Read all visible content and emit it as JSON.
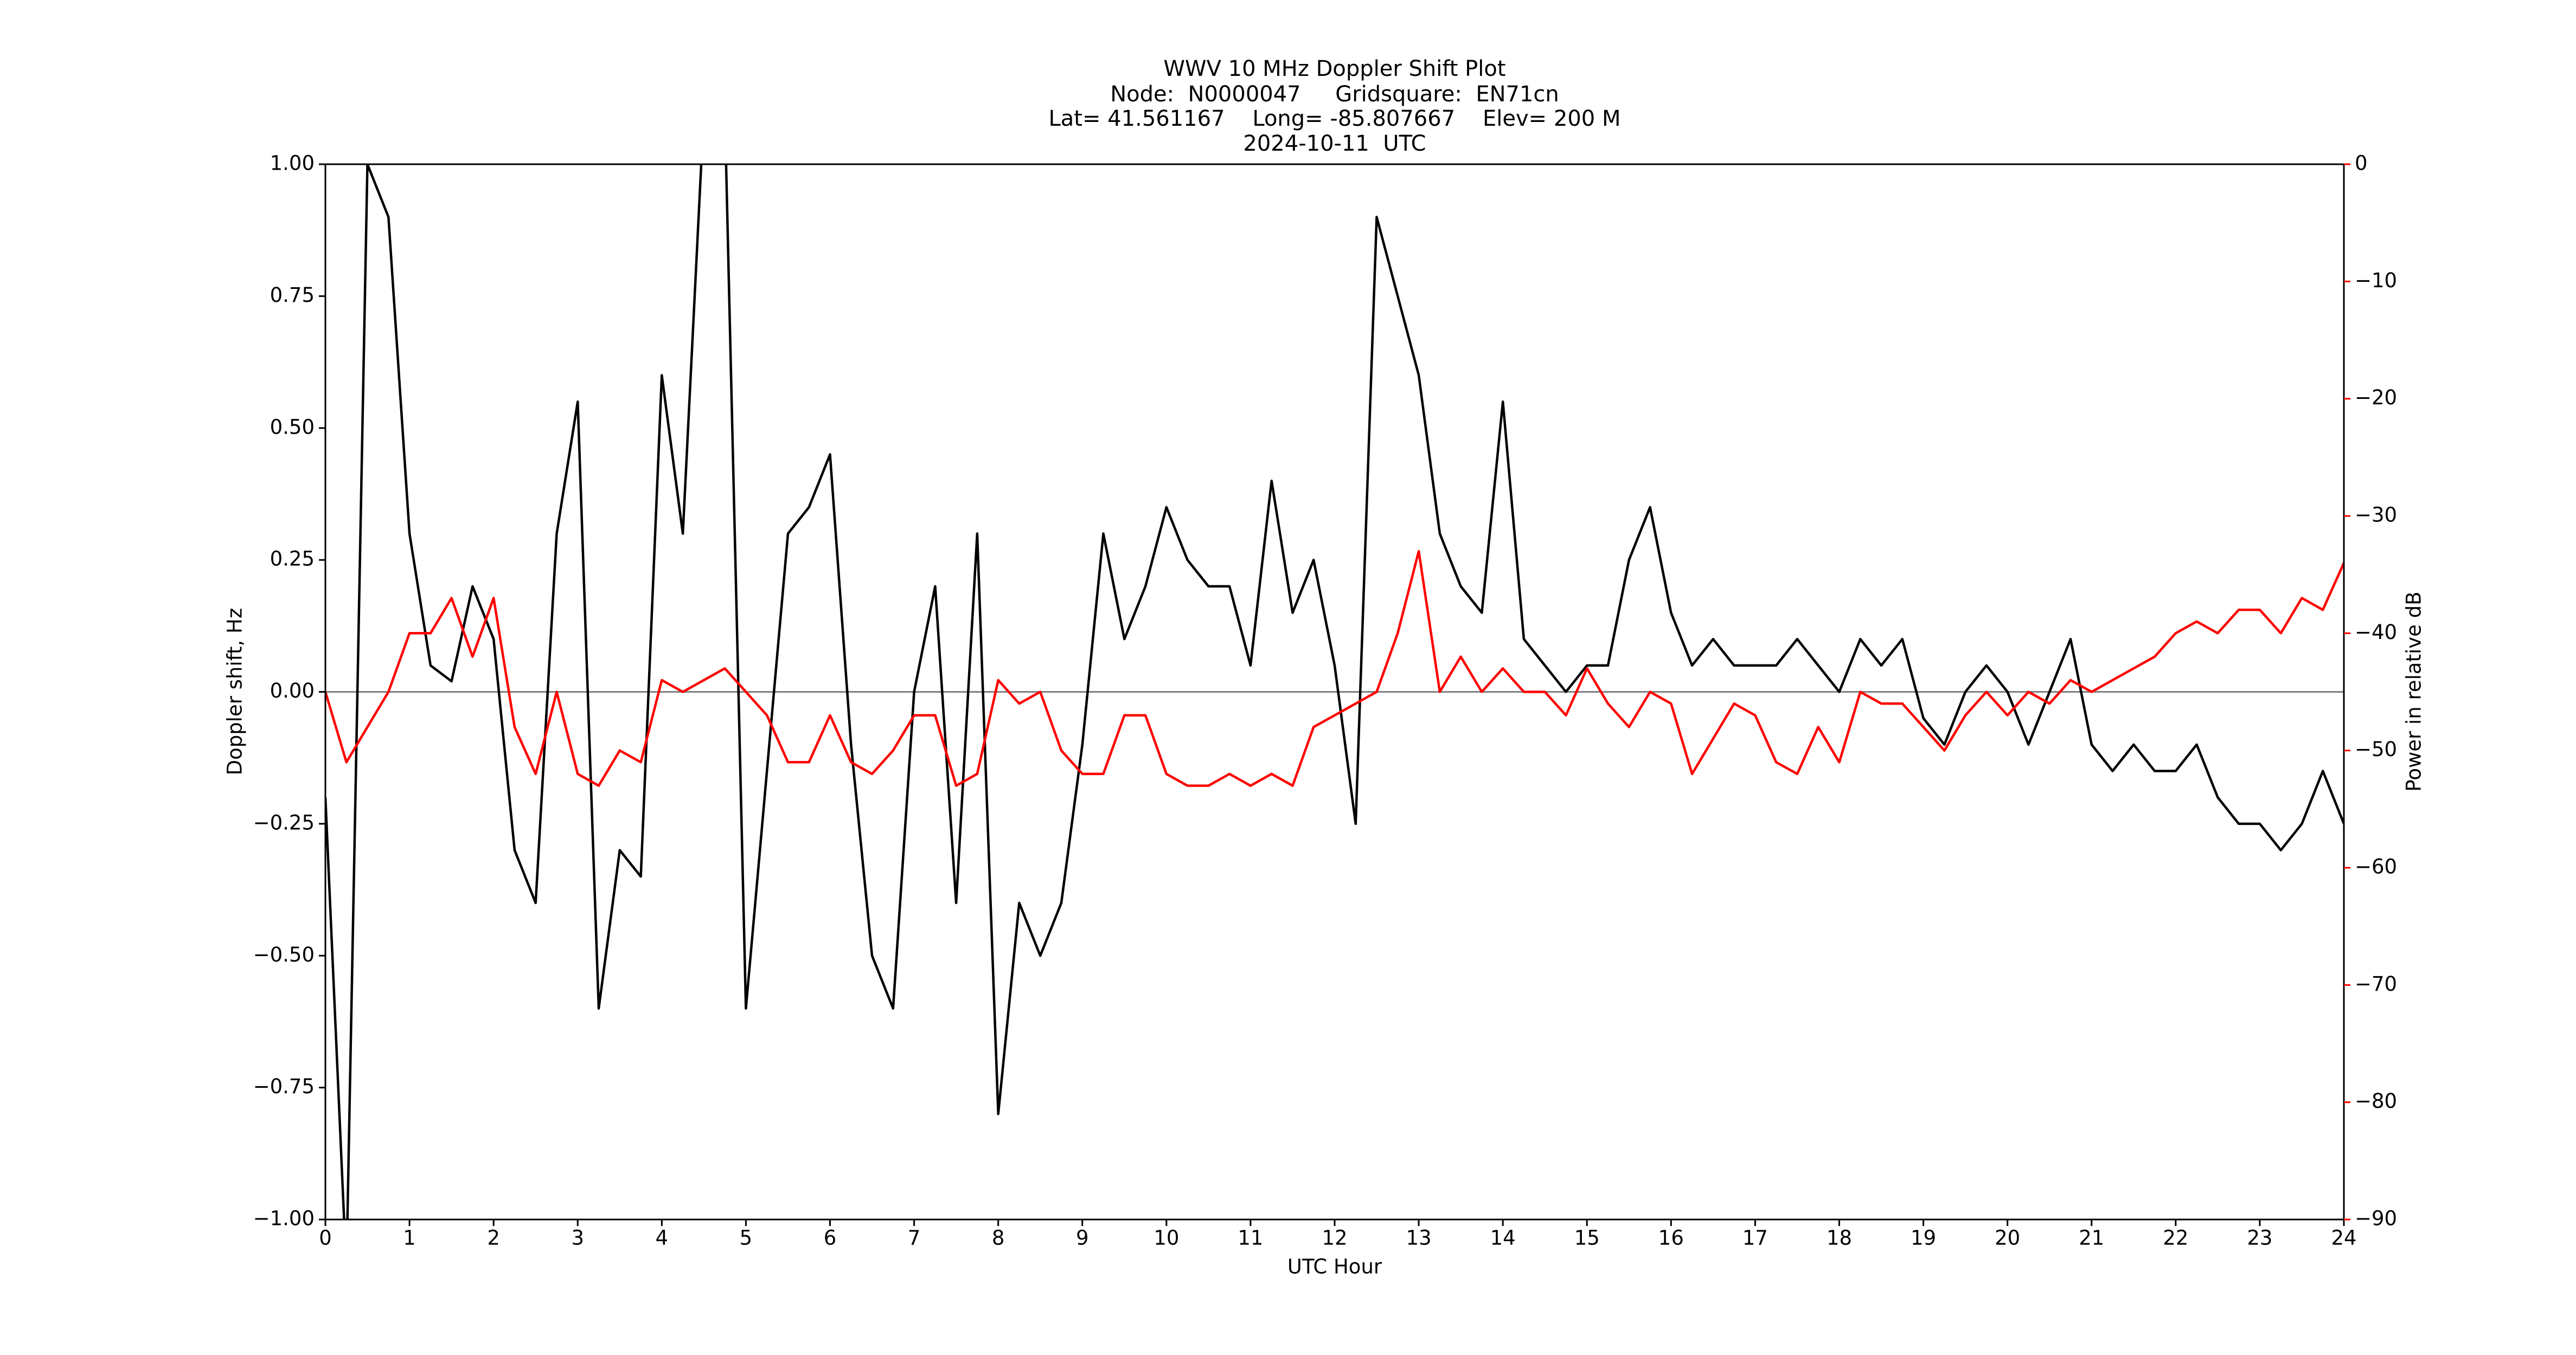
{
  "chart_data": {
    "type": "line",
    "title": [
      "WWV 10 MHz Doppler Shift Plot",
      "Node:  N0000047     Gridsquare:  EN71cn",
      "Lat= 41.561167    Long= -85.807667    Elev= 200 M",
      "2024-10-11  UTC"
    ],
    "x_label": "UTC Hour",
    "y_label": "Doppler shift, Hz",
    "y2_label": "Power in relative dB",
    "x": [
      0,
      0.25,
      0.5,
      0.75,
      1,
      1.25,
      1.5,
      1.75,
      2,
      2.25,
      2.5,
      2.75,
      3,
      3.25,
      3.5,
      3.75,
      4,
      4.25,
      4.5,
      4.75,
      5,
      5.25,
      5.5,
      5.75,
      6,
      6.25,
      6.5,
      6.75,
      7,
      7.25,
      7.5,
      7.75,
      8,
      8.25,
      8.5,
      8.75,
      9,
      9.25,
      9.5,
      9.75,
      10,
      10.25,
      10.5,
      10.75,
      11,
      11.25,
      11.5,
      11.75,
      12,
      12.25,
      12.5,
      12.75,
      13,
      13.25,
      13.5,
      13.75,
      14,
      14.25,
      14.5,
      14.75,
      15,
      15.25,
      15.5,
      15.75,
      16,
      16.25,
      16.5,
      16.75,
      17,
      17.25,
      17.5,
      17.75,
      18,
      18.25,
      18.5,
      18.75,
      19,
      19.25,
      19.5,
      19.75,
      20,
      20.25,
      20.5,
      20.75,
      21,
      21.25,
      21.5,
      21.75,
      22,
      22.25,
      22.5,
      22.75,
      23,
      23.25,
      23.5,
      23.75,
      24
    ],
    "series": [
      {
        "color": "#000000",
        "values": [
          -0.2,
          -1.1,
          1.0,
          0.9,
          0.3,
          0.05,
          0.02,
          0.2,
          0.1,
          -0.3,
          -0.4,
          0.3,
          0.55,
          -0.6,
          -0.3,
          -0.35,
          0.6,
          0.3,
          1.1,
          1.1,
          -0.6,
          -0.15,
          0.3,
          0.35,
          0.45,
          -0.1,
          -0.5,
          -0.6,
          0.0,
          0.2,
          -0.4,
          0.3,
          -0.8,
          -0.4,
          -0.5,
          -0.4,
          -0.1,
          0.3,
          0.1,
          0.2,
          0.35,
          0.25,
          0.2,
          0.2,
          0.05,
          0.4,
          0.15,
          0.25,
          0.05,
          -0.25,
          0.9,
          0.75,
          0.6,
          0.3,
          0.2,
          0.15,
          0.55,
          0.1,
          0.05,
          0.0,
          0.05,
          0.05,
          0.25,
          0.35,
          0.15,
          0.05,
          0.1,
          0.05,
          0.05,
          0.05,
          0.1,
          0.05,
          0.0,
          0.1,
          0.05,
          0.1,
          -0.05,
          -0.1,
          0.0,
          0.05,
          0.0,
          -0.1,
          0.0,
          0.1,
          -0.1,
          -0.15,
          -0.1,
          -0.15,
          -0.15,
          -0.1,
          -0.2,
          -0.25,
          -0.25,
          -0.3,
          -0.25,
          -0.15,
          -0.25
        ]
      },
      {
        "color": "#ff0000",
        "axis": "y2",
        "values": [
          -45,
          -51,
          -48,
          -45,
          -40,
          -40,
          -37,
          -42,
          -37,
          -48,
          -52,
          -45,
          -52,
          -53,
          -50,
          -51,
          -44,
          -45,
          -44,
          -43,
          -45,
          -47,
          -51,
          -51,
          -47,
          -51,
          -52,
          -50,
          -47,
          -47,
          -53,
          -52,
          -44,
          -46,
          -45,
          -50,
          -52,
          -52,
          -47,
          -47,
          -52,
          -53,
          -53,
          -52,
          -53,
          -52,
          -53,
          -48,
          -47,
          -46,
          -45,
          -40,
          -33,
          -45,
          -42,
          -45,
          -43,
          -45,
          -45,
          -47,
          -43,
          -46,
          -48,
          -45,
          -46,
          -52,
          -49,
          -46,
          -47,
          -51,
          -52,
          -48,
          -51,
          -45,
          -46,
          -46,
          -48,
          -50,
          -47,
          -45,
          -47,
          -45,
          -46,
          -44,
          -45,
          -44,
          -43,
          -42,
          -40,
          -39,
          -40,
          -38,
          -38,
          -40,
          -37,
          -38,
          -34
        ]
      }
    ],
    "xlim": [
      0,
      24
    ],
    "xticks": [
      0,
      1,
      2,
      3,
      4,
      5,
      6,
      7,
      8,
      9,
      10,
      11,
      12,
      13,
      14,
      15,
      16,
      17,
      18,
      19,
      20,
      21,
      22,
      23,
      24
    ],
    "ylim": [
      -1,
      1
    ],
    "yticks": [
      {
        "value": 1,
        "label": "1.00"
      },
      {
        "value": 0.75,
        "label": "0.75"
      },
      {
        "value": 0.5,
        "label": "0.50"
      },
      {
        "value": 0.25,
        "label": "0.25"
      },
      {
        "value": 0,
        "label": "0.00"
      },
      {
        "value": -0.25,
        "label": "−0.25"
      },
      {
        "value": -0.5,
        "label": "−0.50"
      },
      {
        "value": -0.75,
        "label": "−0.75"
      },
      {
        "value": -1,
        "label": "−1.00"
      }
    ],
    "y2lim": [
      -90,
      0
    ],
    "y2ticks": [
      0,
      {
        "value": -10,
        "label": "−10"
      },
      {
        "value": -20,
        "label": "−20"
      },
      {
        "value": -30,
        "label": "−30"
      },
      {
        "value": -40,
        "label": "−40"
      },
      {
        "value": -50,
        "label": "−50"
      },
      {
        "value": -60,
        "label": "−60"
      },
      {
        "value": -70,
        "label": "−70"
      },
      {
        "value": -80,
        "label": "−80"
      },
      {
        "value": -90,
        "label": "−90"
      }
    ],
    "y2_color": "#ff0000",
    "hline": 0,
    "hline_color": "#808080"
  }
}
